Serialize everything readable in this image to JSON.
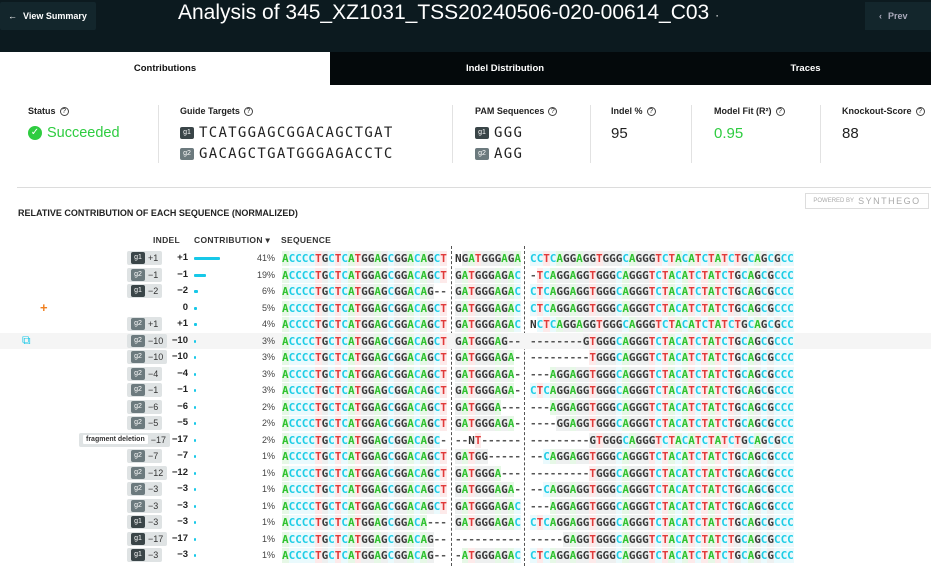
{
  "header": {
    "back_label": "View Summary",
    "title_prefix": "Analysis of",
    "title_id": "345_XZ1031_TSS20240506-020-00614_C03",
    "title_suffix": "·",
    "prev_label": "Prev"
  },
  "tabs": [
    {
      "label": "Contributions",
      "active": true
    },
    {
      "label": "Indel Distribution",
      "active": false
    },
    {
      "label": "Traces",
      "active": false
    }
  ],
  "stats": {
    "status": {
      "label": "Status",
      "value": "Succeeded",
      "color": "#2ecc40"
    },
    "guides": {
      "label": "Guide Targets",
      "items": [
        {
          "tag": "g1",
          "seq": "TCATGGAGCGGACAGCTGAT"
        },
        {
          "tag": "g2",
          "seq": "GACAGCTGATGGGAGACCTC"
        }
      ]
    },
    "pam": {
      "label": "PAM Sequences",
      "items": [
        {
          "tag": "g1",
          "seq": "GGG"
        },
        {
          "tag": "g2",
          "seq": "AGG"
        }
      ]
    },
    "indel": {
      "label": "Indel %",
      "value": "95"
    },
    "model_fit": {
      "label": "Model Fit (R²)",
      "value": "0.95",
      "color": "#2ecc40"
    },
    "ko": {
      "label": "Knockout-Score",
      "value": "88"
    }
  },
  "powered": {
    "small": "POWERED BY",
    "brand": "SYNTHEGO"
  },
  "section_title": "RELATIVE CONTRIBUTION OF EACH SEQUENCE (NORMALIZED)",
  "columns": {
    "indel": "INDEL",
    "contribution": "CONTRIBUTION",
    "sort": "▾",
    "sequence": "SEQUENCE"
  },
  "colors": {
    "A": "#2fc22f",
    "C": "#1fcde6",
    "G": "#3b3b3b",
    "T": "#e03a3a",
    "bar": "#17c8e8"
  },
  "rows": [
    {
      "tag": "g1",
      "tag_indel": "+1",
      "indel": "+1",
      "pct": 41,
      "pct_label": "41%",
      "left": "ACCCCTGCTCATGGAGCGGACAGCT",
      "mid": "NGATGGGAGA",
      "right": "CCTCAGGAGGTGGGCAGGGTCTACATCTATCTGCAGCGCC"
    },
    {
      "tag": "g2",
      "tag_indel": "−1",
      "indel": "−1",
      "pct": 19,
      "pct_label": "19%",
      "left": "ACCCCTGCTCATGGAGCGGACAGCT",
      "mid": "GATGGGAGAC",
      "right": "-TCAGGAGGTGGGCAGGGTCTACATCTATCTGCAGCGCCC"
    },
    {
      "tag": "g1",
      "tag_indel": "−2",
      "indel": "−2",
      "pct": 6,
      "pct_label": "6%",
      "left": "ACCCCTGCTCATGGAGCGGACAG--",
      "mid": "GATGGGAGAC",
      "right": "CTCAGGAGGTGGGCAGGGTCTACATCTATCTGCAGCGCCC"
    },
    {
      "tag": "",
      "tag_indel": "",
      "indel": "0",
      "pct": 5,
      "pct_label": "5%",
      "left": "ACCCCTGCTCATGGAGCGGACAGCT",
      "mid": "GATGGGAGAC",
      "right": "CTCAGGAGGTGGGCAGGGTCTACATCTATCTGCAGCGCCC"
    },
    {
      "tag": "g2",
      "tag_indel": "+1",
      "indel": "+1",
      "pct": 4,
      "pct_label": "4%",
      "left": "ACCCCTGCTCATGGAGCGGACAGCT",
      "mid": "GATGGGAGAC",
      "right": "NCTCAGGAGGTGGGCAGGGTCTACATCTATCTGCAGCGCC"
    },
    {
      "tag": "g2",
      "tag_indel": "−10",
      "indel": "−10",
      "pct": 3,
      "pct_label": "3%",
      "left": "ACCCCTGCTCATGGAGCGGACAGCT",
      "mid": "GATGGGAG--",
      "right": "--------GTGGGCAGGGTCTACATCTATCTGCAGCGCCC",
      "highlight": true
    },
    {
      "tag": "g2",
      "tag_indel": "−10",
      "indel": "−10",
      "pct": 3,
      "pct_label": "3%",
      "left": "ACCCCTGCTCATGGAGCGGACAGCT",
      "mid": "GATGGGAGA-",
      "right": "---------TGGGCAGGGTCTACATCTATCTGCAGCGCCC"
    },
    {
      "tag": "g2",
      "tag_indel": "−4",
      "indel": "−4",
      "pct": 3,
      "pct_label": "3%",
      "left": "ACCCCTGCTCATGGAGCGGACAGCT",
      "mid": "GATGGGAGA-",
      "right": "---AGGAGGTGGGCAGGGTCTACATCTATCTGCAGCGCCC"
    },
    {
      "tag": "g2",
      "tag_indel": "−1",
      "indel": "−1",
      "pct": 3,
      "pct_label": "3%",
      "left": "ACCCCTGCTCATGGAGCGGACAGCT",
      "mid": "GATGGGAGA-",
      "right": "CTCAGGAGGTGGGCAGGGTCTACATCTATCTGCAGCGCCC"
    },
    {
      "tag": "g2",
      "tag_indel": "−6",
      "indel": "−6",
      "pct": 2,
      "pct_label": "2%",
      "left": "ACCCCTGCTCATGGAGCGGACAGCT",
      "mid": "GATGGGA---",
      "right": "---AGGAGGTGGGCAGGGTCTACATCTATCTGCAGCGCCC"
    },
    {
      "tag": "g2",
      "tag_indel": "−5",
      "indel": "−5",
      "pct": 2,
      "pct_label": "2%",
      "left": "ACCCCTGCTCATGGAGCGGACAGCT",
      "mid": "GATGGGAGA-",
      "right": "----GGAGGTGGGCAGGGTCTACATCTATCTGCAGCGCCC"
    },
    {
      "tag": "frag",
      "frag_label": "fragment deletion",
      "tag_indel": "−17",
      "indel": "−17",
      "pct": 2,
      "pct_label": "2%",
      "left": "ACCCCTGCTCATGGAGCGGACAGC-",
      "mid": "--NT------",
      "right": "---------GTGGGCAGGGTCTACATCTATCTGCAGCGCC"
    },
    {
      "tag": "g2",
      "tag_indel": "−7",
      "indel": "−7",
      "pct": 1,
      "pct_label": "1%",
      "left": "ACCCCTGCTCATGGAGCGGACAGCT",
      "mid": "GATGG-----",
      "right": "--CAGGAGGTGGGCAGGGTCTACATCTATCTGCAGCGCCC"
    },
    {
      "tag": "g2",
      "tag_indel": "−12",
      "indel": "−12",
      "pct": 1,
      "pct_label": "1%",
      "left": "ACCCCTGCTCATGGAGCGGACAGCT",
      "mid": "GATGGGA---",
      "right": "---------TGGGCAGGGTCTACATCTATCTGCAGCGCCC"
    },
    {
      "tag": "g2",
      "tag_indel": "−3",
      "indel": "−3",
      "pct": 1,
      "pct_label": "1%",
      "left": "ACCCCTGCTCATGGAGCGGACAGCT",
      "mid": "GATGGGAGA-",
      "right": "--CAGGAGGTGGGCAGGGTCTACATCTATCTGCAGCGCCC"
    },
    {
      "tag": "g2",
      "tag_indel": "−3",
      "indel": "−3",
      "pct": 1,
      "pct_label": "1%",
      "left": "ACCCCTGCTCATGGAGCGGACAGCT",
      "mid": "GATGGGAGAC",
      "right": "---AGGAGGTGGGCAGGGTCTACATCTATCTGCAGCGCCC"
    },
    {
      "tag": "g1",
      "tag_indel": "−3",
      "indel": "−3",
      "pct": 1,
      "pct_label": "1%",
      "left": "ACCCCTGCTCATGGAGCGGACA---",
      "mid": "GATGGGAGAC",
      "right": "CTCAGGAGGTGGGCAGGGTCTACATCTATCTGCAGCGCCC"
    },
    {
      "tag": "g1",
      "tag_indel": "−17",
      "indel": "−17",
      "pct": 1,
      "pct_label": "1%",
      "left": "ACCCCTGCTCATGGAGCGGACAG--",
      "mid": "----------",
      "right": "-----GAGGTGGGCAGGGTCTACATCTATCTGCAGCGCCC"
    },
    {
      "tag": "g1",
      "tag_indel": "−3",
      "indel": "−3",
      "pct": 1,
      "pct_label": "1%",
      "left": "ACCCCTGCTCATGGAGCGGACAG--",
      "mid": "-ATGGGAGAC",
      "right": "CTCAGGAGGTGGGCAGGGTCTACATCTATCTGCAGCGCCC"
    }
  ]
}
